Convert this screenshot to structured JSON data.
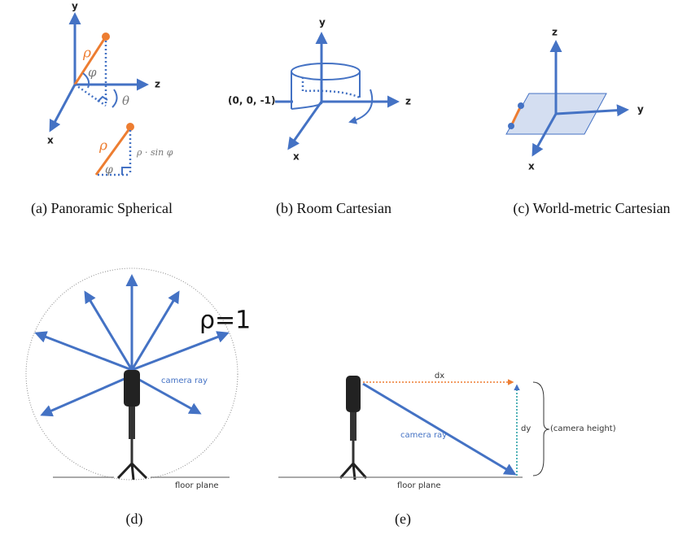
{
  "panels": [
    {
      "caption": "(a) Panoramic Spherical",
      "labels": [
        "y",
        "z",
        "x",
        "ρ",
        "φ",
        "θ",
        "ρ",
        "ρ · sin φ",
        "φ"
      ]
    },
    {
      "caption": "(b) Room Cartesian",
      "labels": [
        "y",
        "z",
        "x",
        "(0, 0, -1)"
      ]
    },
    {
      "caption": "(c) World-metric Cartesian",
      "labels": [
        "z",
        "y",
        "x"
      ]
    },
    {
      "caption": "(d)",
      "labels": [
        "ρ=1",
        "camera ray",
        "floor plane"
      ]
    },
    {
      "caption": "(e)",
      "labels": [
        "dx",
        "dy",
        "(camera height)",
        "camera ray",
        "floor plane"
      ]
    }
  ]
}
